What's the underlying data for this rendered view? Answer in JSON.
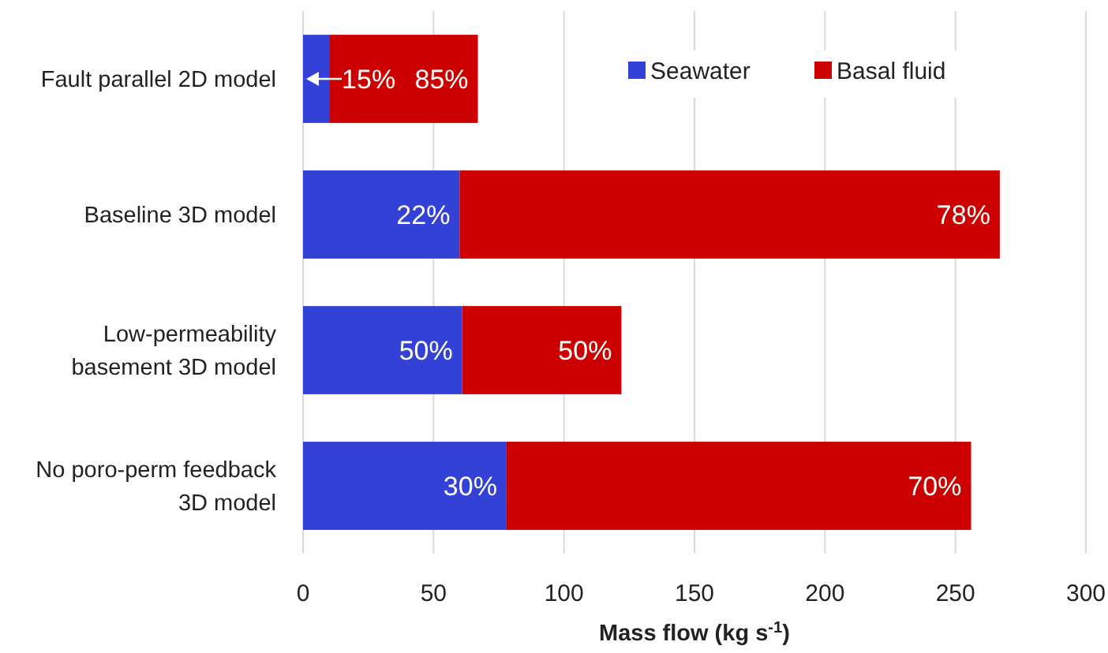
{
  "chart_data": {
    "type": "bar",
    "orientation": "horizontal",
    "stacked": true,
    "categories": [
      "Fault parallel 2D model",
      "Baseline 3D model",
      "Low-permeability basement 3D model",
      "No poro-perm feedback 3D model"
    ],
    "series": [
      {
        "name": "Seawater",
        "color": "#3441d6",
        "values": [
          10,
          60,
          61,
          78
        ]
      },
      {
        "name": "Basal fluid",
        "color": "#cc0000",
        "values": [
          57,
          207,
          61,
          178
        ]
      }
    ],
    "annotations": [
      {
        "text": "15%",
        "x": 10,
        "y": "Fault parallel 2D model"
      },
      {
        "text": "85%",
        "x": 67,
        "y": "Fault parallel 2D model"
      },
      {
        "text": "22%",
        "x": 60,
        "y": "Baseline 3D model"
      },
      {
        "text": "78%",
        "x": 267,
        "y": "Baseline 3D model"
      },
      {
        "text": "50%",
        "x": 61,
        "y": "Low-permeability basement 3D model"
      },
      {
        "text": "50%",
        "x": 122,
        "y": "Low-permeability basement 3D model"
      },
      {
        "text": "30%",
        "x": 78,
        "y": "No poro-perm feedback 3D model"
      },
      {
        "text": "70%",
        "x": 256,
        "y": "No poro-perm feedback 3D model"
      }
    ],
    "xlabel": "Mass flow  (kg s$^{-1}$)",
    "xlim": [
      0,
      300
    ],
    "xticks": [
      0,
      50,
      100,
      150,
      200,
      250,
      300
    ],
    "grid": "x",
    "legend": "top right"
  }
}
